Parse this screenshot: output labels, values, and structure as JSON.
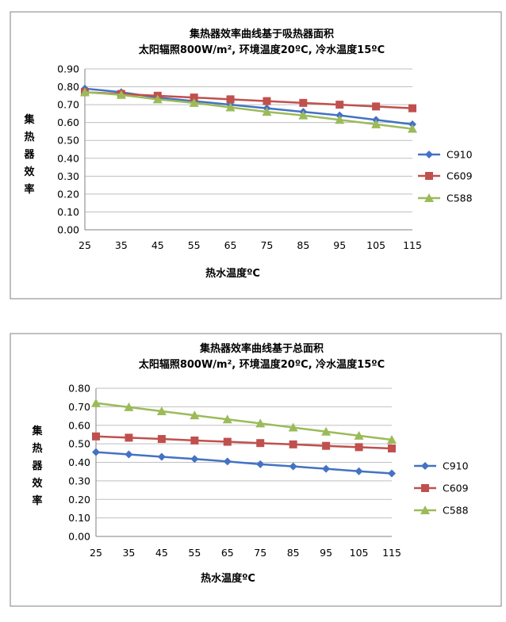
{
  "chart_data": [
    {
      "type": "line",
      "title": "集热器效率曲线基于吸热器面积",
      "subtitle": "太阳辐照800W/m², 环境温度20ºC, 冷水温度15ºC",
      "xlabel": "热水温度ºC",
      "ylabel": "集热器效率",
      "x": [
        25,
        35,
        45,
        55,
        65,
        75,
        85,
        95,
        105,
        115
      ],
      "x_tick_labels": [
        "25",
        "35",
        "45",
        "55",
        "65",
        "75",
        "85",
        "95",
        "105",
        "115"
      ],
      "ylim": [
        0.0,
        0.9
      ],
      "y_ticks": [
        "0.00",
        "0.10",
        "0.20",
        "0.30",
        "0.40",
        "0.50",
        "0.60",
        "0.70",
        "0.80",
        "0.90"
      ],
      "y_tick_values": [
        0.0,
        0.1,
        0.2,
        0.3,
        0.4,
        0.5,
        0.6,
        0.7,
        0.8,
        0.9
      ],
      "grid": "horizontal",
      "legend": "right",
      "series": [
        {
          "name": "C910",
          "color": "#4472C4",
          "marker": "diamond",
          "values": [
            0.79,
            0.77,
            0.74,
            0.72,
            0.7,
            0.68,
            0.66,
            0.64,
            0.615,
            0.59
          ]
        },
        {
          "name": "C609",
          "color": "#C0504D",
          "marker": "square",
          "values": [
            0.77,
            0.76,
            0.75,
            0.74,
            0.73,
            0.72,
            0.71,
            0.7,
            0.69,
            0.68
          ]
        },
        {
          "name": "C588",
          "color": "#9BBB59",
          "marker": "triangle",
          "values": [
            0.77,
            0.755,
            0.73,
            0.71,
            0.685,
            0.66,
            0.64,
            0.615,
            0.59,
            0.565
          ]
        }
      ]
    },
    {
      "type": "line",
      "title": "集热器效率曲线基于总面积",
      "subtitle": "太阳辐照800W/m², 环境温度20ºC, 冷水温度15ºC",
      "xlabel": "热水温度ºC",
      "ylabel": "集热器效率",
      "x": [
        25,
        35,
        45,
        55,
        65,
        75,
        85,
        95,
        105,
        115
      ],
      "x_tick_labels": [
        "25",
        "35",
        "45",
        "55",
        "65",
        "75",
        "85",
        "95",
        "105",
        "115"
      ],
      "ylim": [
        0.0,
        0.8
      ],
      "y_ticks": [
        "0.00",
        "0.10",
        "0.20",
        "0.30",
        "0.40",
        "0.50",
        "0.60",
        "0.70",
        "0.80"
      ],
      "y_tick_values": [
        0.0,
        0.1,
        0.2,
        0.3,
        0.4,
        0.5,
        0.6,
        0.7,
        0.8
      ],
      "grid": "horizontal",
      "legend": "right",
      "series": [
        {
          "name": "C910",
          "color": "#4472C4",
          "marker": "diamond",
          "values": [
            0.455,
            0.443,
            0.43,
            0.418,
            0.405,
            0.39,
            0.378,
            0.365,
            0.352,
            0.34
          ]
        },
        {
          "name": "C609",
          "color": "#C0504D",
          "marker": "square",
          "values": [
            0.54,
            0.533,
            0.526,
            0.518,
            0.511,
            0.504,
            0.497,
            0.489,
            0.482,
            0.475
          ]
        },
        {
          "name": "C588",
          "color": "#9BBB59",
          "marker": "triangle",
          "values": [
            0.72,
            0.698,
            0.676,
            0.654,
            0.632,
            0.61,
            0.588,
            0.566,
            0.544,
            0.522
          ]
        }
      ]
    }
  ]
}
